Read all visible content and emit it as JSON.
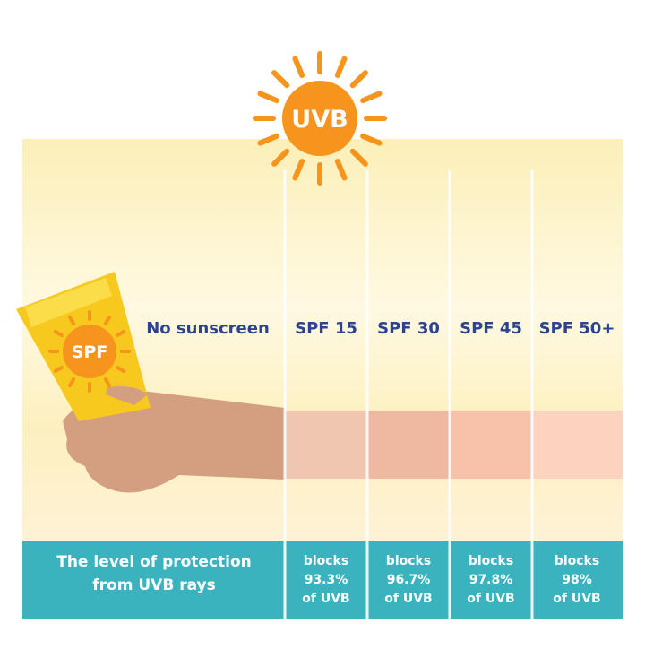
{
  "sun": {
    "label": "UVB"
  },
  "tube": {
    "label": "SPF"
  },
  "columns": [
    {
      "label": "No sunscreen"
    },
    {
      "label": "SPF 15",
      "protection": [
        "blocks",
        "93.3%",
        "of UVB"
      ]
    },
    {
      "label": "SPF 30",
      "protection": [
        "blocks",
        "96.7%",
        "of UVB"
      ]
    },
    {
      "label": "SPF 45",
      "protection": [
        "blocks",
        "97.8%",
        "of UVB"
      ]
    },
    {
      "label": "SPF 50+",
      "protection": [
        "blocks",
        "98%",
        "of UVB"
      ]
    }
  ],
  "footer": {
    "title": [
      "The level of protection",
      "from UVB rays"
    ]
  }
}
